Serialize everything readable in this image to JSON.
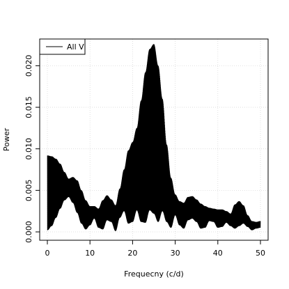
{
  "chart_data": {
    "type": "line",
    "title": "",
    "xlabel": "Frequecny (c/d)",
    "ylabel": "Power",
    "xlim": [
      0,
      50
    ],
    "ylim": [
      0,
      0.0228
    ],
    "x_ticks": [
      0,
      10,
      20,
      30,
      40,
      50
    ],
    "x_tick_labels": [
      "0",
      "10",
      "20",
      "30",
      "40",
      "50"
    ],
    "y_ticks": [
      0,
      0.005,
      0.01,
      0.015,
      0.02
    ],
    "y_tick_labels": [
      "0.000",
      "0.005",
      "0.010",
      "0.015",
      "0.020"
    ],
    "grid": true,
    "legend_position": "top-left",
    "series": [
      {
        "name": "All V",
        "color": "#000000",
        "style": "dense oscillating line filling the band between lower and upper values",
        "x": [
          0,
          1,
          2,
          3,
          4,
          5,
          6,
          7,
          8,
          9,
          10,
          11,
          12,
          13,
          14,
          15,
          16,
          17,
          18,
          19,
          20,
          21,
          22,
          23,
          24,
          25,
          26,
          27,
          28,
          29,
          30,
          31,
          32,
          33,
          34,
          35,
          36,
          37,
          38,
          39,
          40,
          41,
          42,
          43,
          44,
          45,
          46,
          47,
          48,
          49,
          50
        ],
        "upper": [
          0.0092,
          0.0091,
          0.0088,
          0.0082,
          0.0072,
          0.0064,
          0.0066,
          0.0062,
          0.005,
          0.0038,
          0.0031,
          0.0031,
          0.0028,
          0.0038,
          0.0044,
          0.0039,
          0.0032,
          0.0052,
          0.0075,
          0.0098,
          0.0108,
          0.0125,
          0.0158,
          0.0192,
          0.022,
          0.0226,
          0.02,
          0.016,
          0.0105,
          0.0065,
          0.0045,
          0.0037,
          0.0035,
          0.0042,
          0.0043,
          0.0039,
          0.0034,
          0.0031,
          0.0029,
          0.0028,
          0.0027,
          0.0027,
          0.0025,
          0.0022,
          0.0033,
          0.0037,
          0.0032,
          0.002,
          0.0013,
          0.0012,
          0.0013
        ],
        "lower": [
          0.0002,
          0.0007,
          0.0017,
          0.0028,
          0.0038,
          0.0042,
          0.0035,
          0.0023,
          0.001,
          0.0003,
          0.0008,
          0.0016,
          0.0005,
          0.0003,
          0.0014,
          0.0012,
          0.0001,
          0.0017,
          0.0025,
          0.001,
          0.0012,
          0.0026,
          0.0012,
          0.0011,
          0.0026,
          0.0022,
          0.0012,
          0.0025,
          0.0012,
          0.0005,
          0.002,
          0.0008,
          0.0004,
          0.0014,
          0.0016,
          0.0012,
          0.0004,
          0.0005,
          0.0013,
          0.0012,
          0.0005,
          0.0006,
          0.0011,
          0.0007,
          0.0004,
          0.0007,
          0.001,
          0.0006,
          0.0002,
          0.0004,
          0.0005
        ]
      }
    ]
  }
}
